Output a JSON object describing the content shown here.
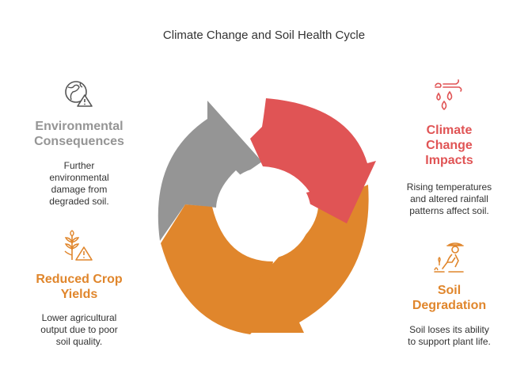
{
  "title": "Climate Change and Soil Health Cycle",
  "colors": {
    "climate": "#e05455",
    "degradation": "#e0862c",
    "yields": "#e0862c",
    "environment": "#959595"
  },
  "nodes": {
    "environmental": {
      "heading": [
        "Environmental",
        "Consequences"
      ],
      "desc": [
        "Further",
        "environmental",
        "damage from",
        "degraded soil."
      ],
      "icon": "globe-warning-icon"
    },
    "climate": {
      "heading": [
        "Climate",
        "Change",
        "Impacts"
      ],
      "desc": [
        "Rising temperatures",
        "and altered rainfall",
        "patterns affect soil."
      ],
      "icon": "wind-rain-icon"
    },
    "yields": {
      "heading": [
        "Reduced Crop",
        "Yields"
      ],
      "desc": [
        "Lower agricultural",
        "output due to poor",
        "soil quality."
      ],
      "icon": "wheat-warning-icon"
    },
    "degradation": {
      "heading": [
        "Soil",
        "Degradation"
      ],
      "desc": [
        "Soil loses its ability",
        "to support plant life."
      ],
      "icon": "farmer-soil-icon"
    }
  }
}
